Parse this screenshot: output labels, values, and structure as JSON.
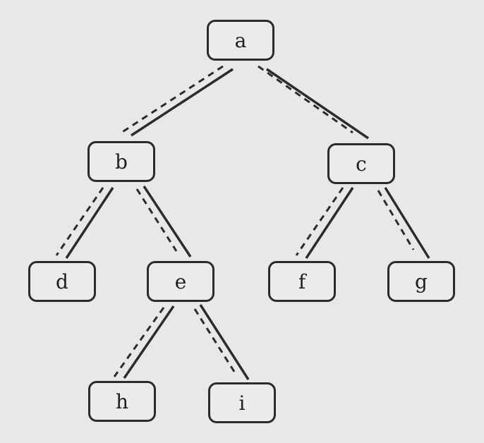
{
  "tree": {
    "nodes": {
      "a": "a",
      "b": "b",
      "c": "c",
      "d": "d",
      "e": "e",
      "f": "f",
      "g": "g",
      "h": "h",
      "i": "i"
    },
    "edges": [
      [
        "a",
        "b"
      ],
      [
        "a",
        "c"
      ],
      [
        "b",
        "d"
      ],
      [
        "b",
        "e"
      ],
      [
        "e",
        "h"
      ],
      [
        "e",
        "i"
      ],
      [
        "c",
        "f"
      ],
      [
        "c",
        "g"
      ]
    ],
    "line_color": "#2b2b2b"
  }
}
